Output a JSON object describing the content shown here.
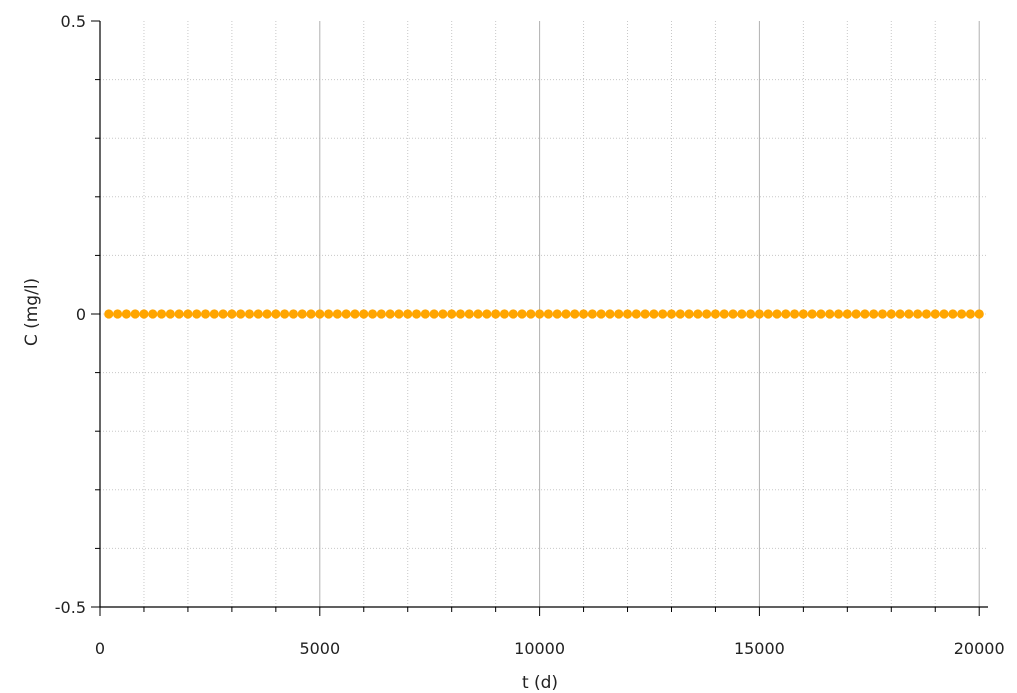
{
  "chart_data": {
    "type": "scatter",
    "title": "",
    "xlabel": "t  (d)",
    "ylabel": "C  (mg/l)",
    "xlim": [
      0,
      20200
    ],
    "ylim": [
      -0.5,
      0.5
    ],
    "x_ticks": [
      0,
      5000,
      10000,
      15000,
      20000
    ],
    "x_tick_labels": [
      "0",
      "5000",
      "10000",
      "15000",
      "20000"
    ],
    "x_minor_step": 1000,
    "y_ticks": [
      -0.5,
      0,
      0.5
    ],
    "y_tick_labels": [
      "-0.5",
      "0",
      "0.5"
    ],
    "y_minor_step": 0.1,
    "grid": true,
    "legend": "none",
    "marker_color": "#FFA500",
    "series": [
      {
        "x_start": 200,
        "x_end": 20000,
        "x_step": 200,
        "y": 0
      }
    ]
  }
}
